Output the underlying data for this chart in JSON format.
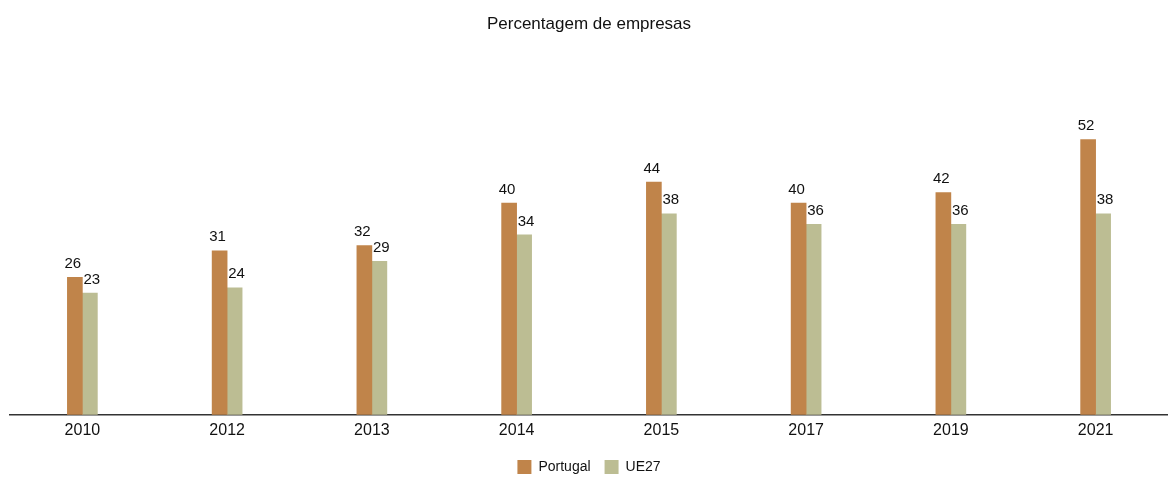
{
  "chart_data": {
    "type": "bar",
    "title": "Percentagem de empresas",
    "categories": [
      "2010",
      "2012",
      "2013",
      "2014",
      "2015",
      "2017",
      "2019",
      "2021"
    ],
    "series": [
      {
        "name": "Portugal",
        "color": "#c0844a",
        "values": [
          26,
          31,
          32,
          40,
          44,
          40,
          42,
          52
        ]
      },
      {
        "name": "UE27",
        "color": "#bcbd93",
        "values": [
          23,
          24,
          29,
          34,
          38,
          36,
          36,
          38
        ]
      }
    ],
    "data_labels": true,
    "legend": "bottom"
  }
}
